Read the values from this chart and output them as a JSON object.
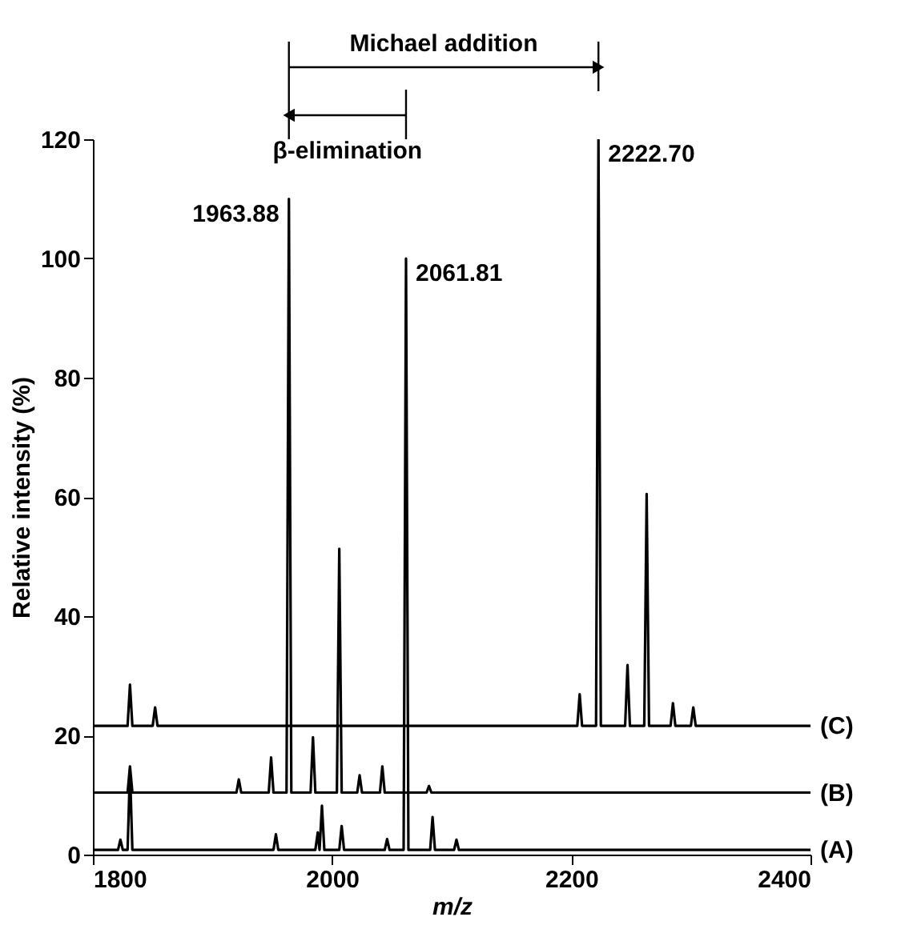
{
  "chart_data": {
    "type": "line",
    "xlabel": "m/z",
    "ylabel": "Relative intensity (%)",
    "xlim": [
      1800,
      2400
    ],
    "xticks": [
      1800,
      2000,
      2200,
      2400
    ],
    "ylim": [
      0,
      120
    ],
    "yticks": [
      0,
      20,
      40,
      60,
      80,
      100,
      120
    ],
    "grid": false,
    "legend": false,
    "marker": "none",
    "line_style": "solid",
    "series": [
      {
        "name": "(A)",
        "color": "#000000",
        "x": [
          1800,
          1821,
          1823,
          1825,
          1829,
          1831,
          1833,
          1951,
          1953,
          1955,
          1986,
          1988,
          1989.5,
          1991.5,
          1993.5,
          2006,
          2008,
          2010,
          2044,
          2046,
          2048,
          2059.8,
          2061.81,
          2063.8,
          2082,
          2084,
          2086,
          2102,
          2104,
          2106,
          2400
        ],
        "values": [
          0.8,
          0.8,
          2.5,
          0.8,
          0.8,
          14.3,
          0.8,
          0.8,
          3.4,
          0.8,
          0.8,
          3.7,
          0.8,
          8.2,
          0.8,
          0.8,
          4.8,
          0.8,
          0.8,
          2.6,
          0.8,
          0.8,
          100,
          0.8,
          0.8,
          6.3,
          0.8,
          0.8,
          2.5,
          0.8,
          0.8
        ]
      },
      {
        "name": "(B)",
        "color": "#000000",
        "x": [
          1800,
          1829,
          1831,
          1833,
          1920,
          1922,
          1924,
          1947,
          1949,
          1951,
          1961.9,
          1963.88,
          1965.9,
          1982,
          1984,
          1986,
          2004,
          2006,
          2008,
          2021,
          2023,
          2025,
          2040,
          2042,
          2044,
          2079,
          2081,
          2083,
          2400
        ],
        "values": [
          10.4,
          10.4,
          14.8,
          10.4,
          10.4,
          12.6,
          10.4,
          10.4,
          16.3,
          10.4,
          10.4,
          110,
          10.4,
          10.4,
          19.7,
          10.4,
          10.4,
          51.3,
          10.4,
          10.4,
          13.3,
          10.4,
          10.4,
          14.8,
          10.4,
          10.4,
          11.5,
          10.4,
          10.4
        ]
      },
      {
        "name": "(C)",
        "color": "#000000",
        "x": [
          1800,
          1829,
          1831,
          1833,
          1850,
          1852,
          1854,
          2205,
          2207,
          2209,
          2220.7,
          2222.7,
          2224.7,
          2245,
          2247,
          2249,
          2261,
          2263,
          2265,
          2283,
          2285,
          2287,
          2300,
          2302,
          2304,
          2400
        ],
        "values": [
          21.6,
          21.6,
          28.5,
          21.6,
          21.6,
          24.7,
          21.6,
          21.6,
          26.9,
          21.6,
          21.6,
          120,
          21.6,
          21.6,
          31.8,
          21.6,
          21.6,
          60.5,
          21.6,
          21.6,
          25.4,
          21.6,
          21.6,
          24.7,
          21.6,
          21.6
        ]
      }
    ],
    "annotations": [
      {
        "text": "1963.88",
        "x": 1963.88,
        "y": 110
      },
      {
        "text": "2061.81",
        "x": 2061.81,
        "y": 100
      },
      {
        "text": "2222.70",
        "x": 2222.7,
        "y": 120
      },
      "Michael addition",
      "β-elimination"
    ]
  }
}
